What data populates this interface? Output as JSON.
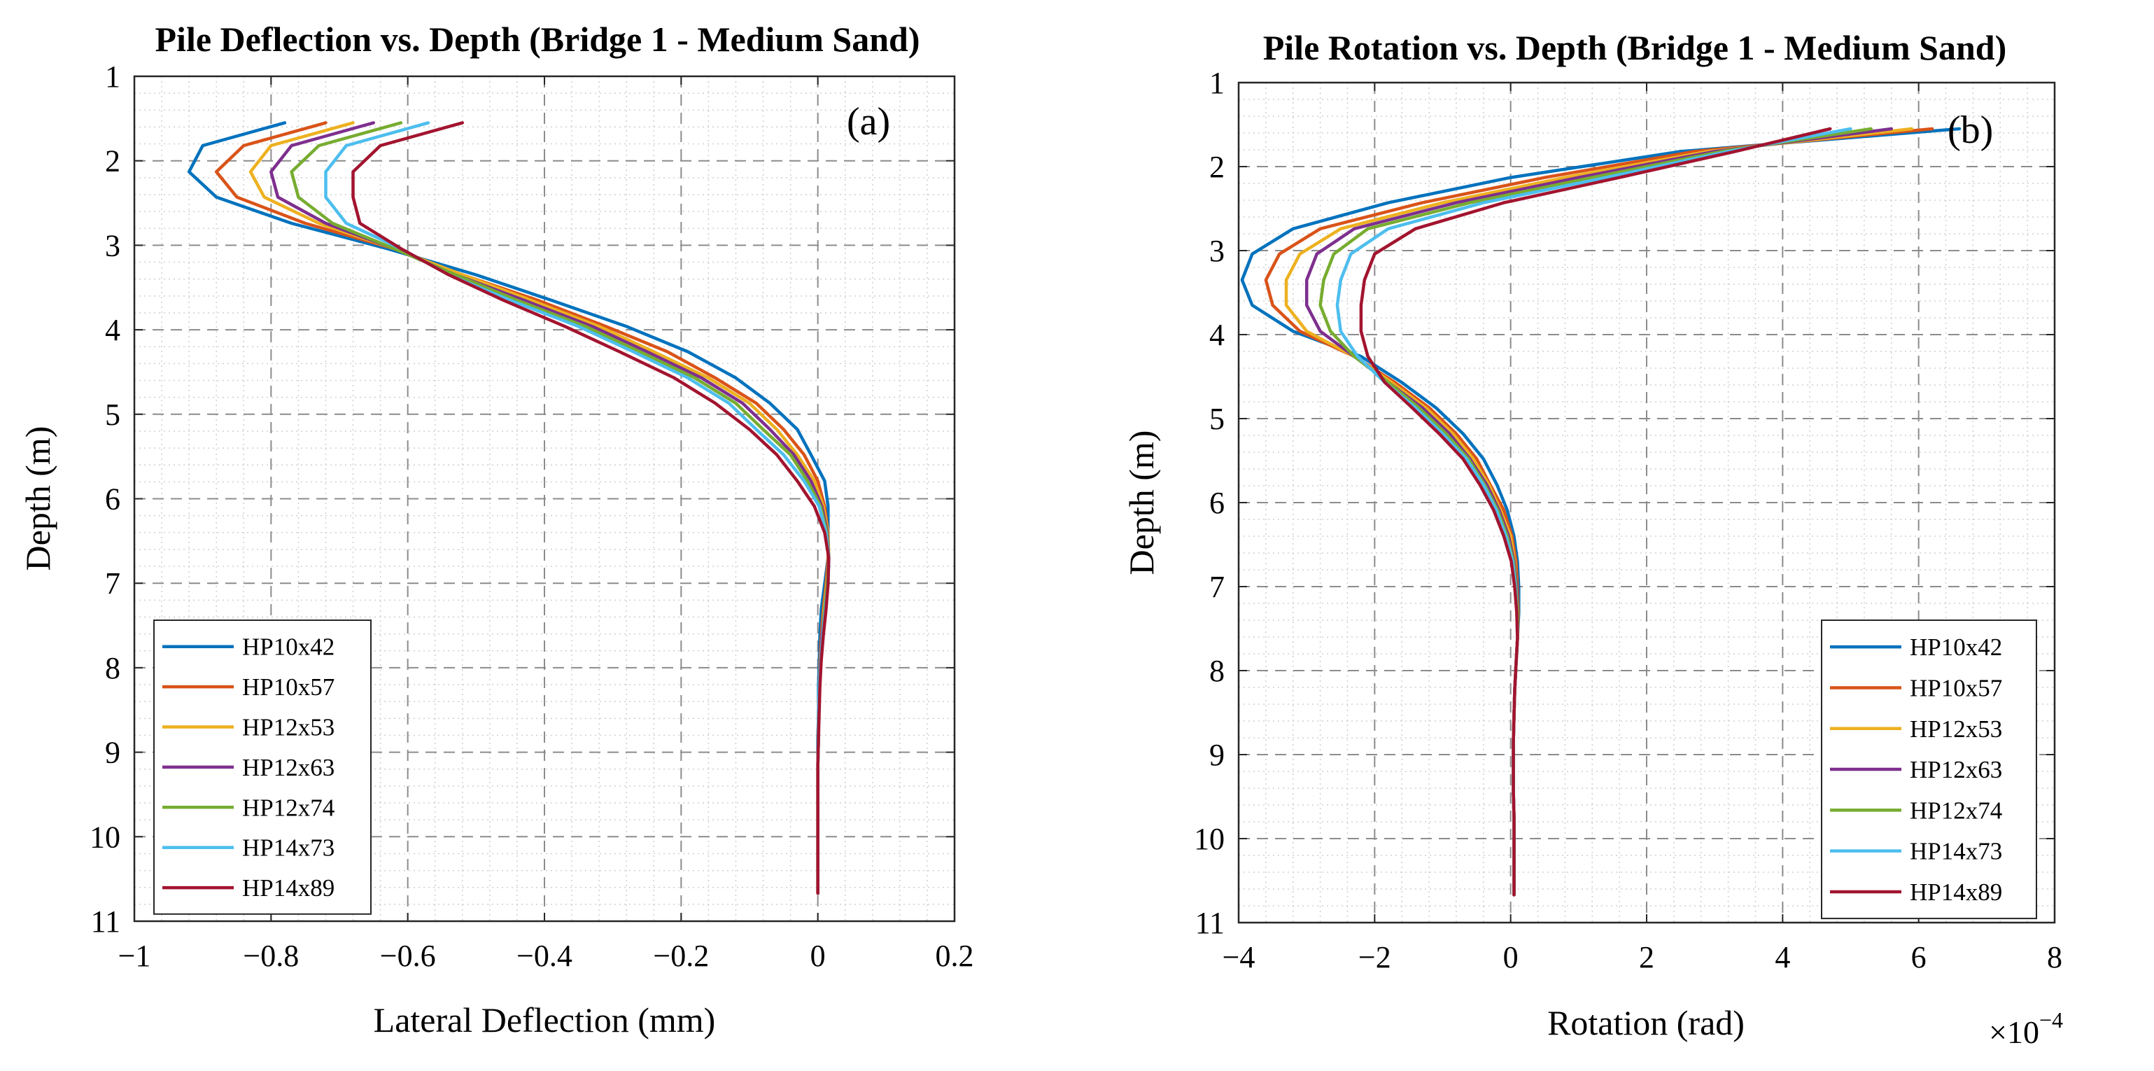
{
  "chart_data": [
    {
      "type": "line",
      "panel_label": "(a)",
      "title": "Pile Deflection vs. Depth (Bridge 1 - Medium Sand)",
      "xlabel": "Lateral Deflection (mm)",
      "ylabel": "Depth (m)",
      "xlim": [
        -1,
        0.2
      ],
      "ylim": [
        1,
        11
      ],
      "y_reversed": true,
      "x_ticks": [
        -1,
        -0.8,
        -0.6,
        -0.4,
        -0.2,
        0,
        0.2
      ],
      "x_tick_labels": [
        "−1",
        "−0.8",
        "−0.6",
        "−0.4",
        "−0.2",
        "0",
        "0.2"
      ],
      "y_ticks": [
        1,
        2,
        3,
        4,
        5,
        6,
        7,
        8,
        9,
        10,
        11
      ],
      "y_tick_labels": [
        "1",
        "2",
        "3",
        "4",
        "5",
        "6",
        "7",
        "8",
        "9",
        "10",
        "11"
      ],
      "grid": true,
      "minor_grid": true,
      "legend_position": "bottom-left",
      "depth": [
        1.55,
        1.82,
        2.13,
        2.43,
        2.74,
        3.04,
        3.35,
        3.65,
        3.96,
        4.26,
        4.57,
        4.87,
        5.18,
        5.48,
        5.79,
        6.09,
        6.4,
        6.7,
        7.01,
        7.31,
        7.62,
        7.92,
        8.23,
        8.53,
        8.84,
        9.14,
        9.45,
        9.75,
        10.06,
        10.36,
        10.67
      ],
      "series": [
        {
          "name": "HP10x42",
          "color": "#0072BD",
          "values": [
            -0.78,
            -0.9,
            -0.92,
            -0.88,
            -0.77,
            -0.63,
            -0.5,
            -0.39,
            -0.28,
            -0.19,
            -0.12,
            -0.07,
            -0.03,
            -0.01,
            0.01,
            0.015,
            0.015,
            0.015,
            0.01,
            0.005,
            0.003,
            0.002,
            0.001,
            0.001,
            0,
            0,
            0,
            0,
            0,
            0,
            0
          ]
        },
        {
          "name": "HP10x57",
          "color": "#D95319",
          "values": [
            -0.72,
            -0.84,
            -0.88,
            -0.85,
            -0.75,
            -0.62,
            -0.52,
            -0.41,
            -0.31,
            -0.22,
            -0.15,
            -0.09,
            -0.05,
            -0.02,
            0,
            0.01,
            0.015,
            0.015,
            0.012,
            0.008,
            0.005,
            0.003,
            0.002,
            0.001,
            0.001,
            0,
            0,
            0,
            0,
            0,
            0
          ]
        },
        {
          "name": "HP12x53",
          "color": "#EDB120",
          "values": [
            -0.68,
            -0.8,
            -0.83,
            -0.81,
            -0.73,
            -0.62,
            -0.52,
            -0.42,
            -0.32,
            -0.24,
            -0.16,
            -0.1,
            -0.06,
            -0.03,
            -0.005,
            0.008,
            0.015,
            0.016,
            0.013,
            0.009,
            0.006,
            0.004,
            0.002,
            0.001,
            0.001,
            0,
            0,
            0,
            0,
            0,
            0
          ]
        },
        {
          "name": "HP12x63",
          "color": "#7E2F8E",
          "values": [
            -0.65,
            -0.77,
            -0.8,
            -0.79,
            -0.72,
            -0.62,
            -0.53,
            -0.43,
            -0.33,
            -0.25,
            -0.17,
            -0.11,
            -0.07,
            -0.035,
            -0.01,
            0.006,
            0.014,
            0.016,
            0.014,
            0.01,
            0.006,
            0.004,
            0.002,
            0.001,
            0.001,
            0,
            0,
            0,
            0,
            0,
            0
          ]
        },
        {
          "name": "HP12x74",
          "color": "#77AC30",
          "values": [
            -0.61,
            -0.73,
            -0.77,
            -0.76,
            -0.71,
            -0.62,
            -0.53,
            -0.44,
            -0.34,
            -0.26,
            -0.18,
            -0.12,
            -0.08,
            -0.04,
            -0.015,
            0.004,
            0.013,
            0.016,
            0.014,
            0.01,
            0.007,
            0.004,
            0.002,
            0.001,
            0.001,
            0,
            0,
            0,
            0,
            0,
            0
          ]
        },
        {
          "name": "HP14x73",
          "color": "#4DBEEE",
          "values": [
            -0.57,
            -0.69,
            -0.72,
            -0.72,
            -0.69,
            -0.61,
            -0.54,
            -0.45,
            -0.35,
            -0.27,
            -0.19,
            -0.13,
            -0.09,
            -0.05,
            -0.02,
            0.002,
            0.012,
            0.016,
            0.015,
            0.011,
            0.007,
            0.004,
            0.002,
            0.001,
            0.001,
            0,
            0,
            0,
            0,
            0,
            0
          ]
        },
        {
          "name": "HP14x89",
          "color": "#A2142F",
          "values": [
            -0.52,
            -0.64,
            -0.68,
            -0.68,
            -0.67,
            -0.61,
            -0.54,
            -0.46,
            -0.37,
            -0.29,
            -0.21,
            -0.15,
            -0.1,
            -0.06,
            -0.03,
            -0.005,
            0.01,
            0.016,
            0.015,
            0.012,
            0.008,
            0.005,
            0.003,
            0.002,
            0.001,
            0,
            0,
            0,
            0,
            0,
            0
          ]
        }
      ]
    },
    {
      "type": "line",
      "panel_label": "(b)",
      "title": "Pile Rotation vs. Depth (Bridge 1 - Medium Sand)",
      "xlabel": "Rotation (rad)",
      "ylabel": "Depth (m)",
      "x_multiplier": "×10",
      "x_multiplier_exponent": "−4",
      "xlim": [
        -4,
        8
      ],
      "ylim": [
        1,
        11
      ],
      "y_reversed": true,
      "x_ticks": [
        -4,
        -2,
        0,
        2,
        4,
        6,
        8
      ],
      "x_tick_labels": [
        "−4",
        "−2",
        "0",
        "2",
        "4",
        "6",
        "8"
      ],
      "y_ticks": [
        1,
        2,
        3,
        4,
        5,
        6,
        7,
        8,
        9,
        10,
        11
      ],
      "y_tick_labels": [
        "1",
        "2",
        "3",
        "4",
        "5",
        "6",
        "7",
        "8",
        "9",
        "10",
        "11"
      ],
      "grid": true,
      "minor_grid": true,
      "legend_position": "bottom-right",
      "depth": [
        1.55,
        1.82,
        2.13,
        2.43,
        2.74,
        3.04,
        3.35,
        3.65,
        3.96,
        4.26,
        4.57,
        4.87,
        5.18,
        5.48,
        5.79,
        6.09,
        6.4,
        6.7,
        7.01,
        7.31,
        7.62,
        7.92,
        8.23,
        8.53,
        8.84,
        9.14,
        9.45,
        9.75,
        10.06,
        10.36,
        10.67
      ],
      "series": [
        {
          "name": "HP10x42",
          "color": "#0072BD",
          "values": [
            6.6,
            2.5,
            0,
            -1.8,
            -3.2,
            -3.8,
            -3.95,
            -3.8,
            -3.2,
            -2.2,
            -1.6,
            -1.1,
            -0.7,
            -0.4,
            -0.2,
            -0.05,
            0.05,
            0.1,
            0.12,
            0.12,
            0.1,
            0.08,
            0.06,
            0.05,
            0.04,
            0.04,
            0.04,
            0.05,
            0.05,
            0.05,
            0.05
          ]
        },
        {
          "name": "HP10x57",
          "color": "#D95319",
          "values": [
            6.2,
            2.7,
            0.5,
            -1.3,
            -2.8,
            -3.4,
            -3.6,
            -3.5,
            -3.1,
            -2.3,
            -1.7,
            -1.2,
            -0.8,
            -0.5,
            -0.3,
            -0.1,
            0.02,
            0.08,
            0.1,
            0.11,
            0.1,
            0.08,
            0.06,
            0.05,
            0.04,
            0.04,
            0.04,
            0.05,
            0.05,
            0.05,
            0.05
          ]
        },
        {
          "name": "HP12x53",
          "color": "#EDB120",
          "values": [
            5.9,
            2.9,
            0.8,
            -1,
            -2.5,
            -3.1,
            -3.3,
            -3.3,
            -3,
            -2.3,
            -1.75,
            -1.25,
            -0.85,
            -0.55,
            -0.32,
            -0.15,
            0,
            0.06,
            0.09,
            0.1,
            0.1,
            0.08,
            0.06,
            0.05,
            0.04,
            0.04,
            0.04,
            0.05,
            0.05,
            0.05,
            0.05
          ]
        },
        {
          "name": "HP12x63",
          "color": "#7E2F8E",
          "values": [
            5.6,
            3,
            1,
            -0.8,
            -2.3,
            -2.85,
            -3,
            -3,
            -2.8,
            -2.3,
            -1.8,
            -1.3,
            -0.9,
            -0.6,
            -0.35,
            -0.17,
            -0.03,
            0.05,
            0.09,
            0.1,
            0.1,
            0.08,
            0.06,
            0.05,
            0.04,
            0.04,
            0.04,
            0.05,
            0.05,
            0.05,
            0.05
          ]
        },
        {
          "name": "HP12x74",
          "color": "#77AC30",
          "values": [
            5.3,
            3.1,
            1.2,
            -0.6,
            -2.1,
            -2.6,
            -2.75,
            -2.8,
            -2.65,
            -2.3,
            -1.8,
            -1.35,
            -0.95,
            -0.62,
            -0.38,
            -0.19,
            -0.05,
            0.04,
            0.08,
            0.1,
            0.1,
            0.08,
            0.06,
            0.05,
            0.04,
            0.04,
            0.04,
            0.05,
            0.05,
            0.05,
            0.05
          ]
        },
        {
          "name": "HP14x73",
          "color": "#4DBEEE",
          "values": [
            5,
            3.2,
            1.4,
            -0.4,
            -1.8,
            -2.35,
            -2.5,
            -2.55,
            -2.5,
            -2.25,
            -1.85,
            -1.4,
            -1,
            -0.65,
            -0.4,
            -0.21,
            -0.07,
            0.03,
            0.07,
            0.09,
            0.1,
            0.08,
            0.06,
            0.05,
            0.04,
            0.04,
            0.04,
            0.05,
            0.05,
            0.05,
            0.05
          ]
        },
        {
          "name": "HP14x89",
          "color": "#A2142F",
          "values": [
            4.7,
            3.3,
            1.6,
            -0.1,
            -1.4,
            -2,
            -2.15,
            -2.2,
            -2.2,
            -2.1,
            -1.85,
            -1.45,
            -1.05,
            -0.7,
            -0.45,
            -0.25,
            -0.1,
            0.01,
            0.06,
            0.09,
            0.1,
            0.08,
            0.06,
            0.05,
            0.04,
            0.04,
            0.04,
            0.05,
            0.05,
            0.05,
            0.05
          ]
        }
      ]
    }
  ]
}
